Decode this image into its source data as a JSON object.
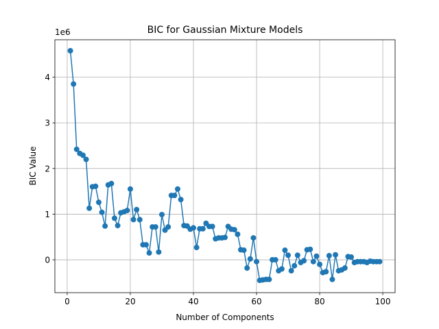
{
  "chart_data": {
    "type": "line",
    "title": "BIC for Gaussian Mixture Models",
    "xlabel": "Number of Components",
    "ylabel": "BIC Value",
    "offset_label": "1e6",
    "xlim": [
      -3.9,
      103.9
    ],
    "ylim": [
      -0.72,
      4.82
    ],
    "xticks": [
      0,
      20,
      40,
      60,
      80,
      100
    ],
    "yticks": [
      0,
      1,
      2,
      3,
      4
    ],
    "grid": true,
    "color": "#1f77b4",
    "series": [
      {
        "x": [
          1,
          2,
          3,
          4,
          5,
          6,
          7,
          8,
          9,
          10,
          11,
          12,
          13,
          14,
          15,
          16,
          17,
          18,
          19,
          20,
          21,
          22,
          23,
          24,
          25,
          26,
          27,
          28,
          29,
          30,
          31,
          32,
          33,
          34,
          35,
          36,
          37,
          38,
          39,
          40,
          41,
          42,
          43,
          44,
          45,
          46,
          47,
          48,
          49,
          50,
          51,
          52,
          53,
          54,
          55,
          56,
          57,
          58,
          59,
          60,
          61,
          62,
          63,
          64,
          65,
          66,
          67,
          68,
          69,
          70,
          71,
          72,
          73,
          74,
          75,
          76,
          77,
          78,
          79,
          80,
          81,
          82,
          83,
          84,
          85,
          86,
          87,
          88,
          89,
          90,
          91,
          92,
          93,
          94,
          95,
          96,
          97,
          98,
          99
        ],
        "y": [
          4.58,
          3.85,
          2.42,
          2.33,
          2.29,
          2.2,
          1.13,
          1.6,
          1.61,
          1.26,
          1.04,
          0.74,
          1.64,
          1.67,
          0.91,
          0.75,
          1.03,
          1.05,
          1.08,
          1.55,
          0.88,
          1.1,
          0.88,
          0.33,
          0.33,
          0.15,
          0.72,
          0.72,
          0.17,
          0.99,
          0.65,
          0.72,
          1.41,
          1.41,
          1.55,
          1.32,
          0.75,
          0.74,
          0.67,
          0.7,
          0.27,
          0.68,
          0.68,
          0.8,
          0.73,
          0.73,
          0.46,
          0.48,
          0.48,
          0.49,
          0.73,
          0.67,
          0.66,
          0.56,
          0.22,
          0.21,
          -0.18,
          0.02,
          0.48,
          -0.04,
          -0.45,
          -0.44,
          -0.43,
          -0.43,
          0.0,
          0.0,
          -0.24,
          -0.2,
          0.21,
          0.1,
          -0.24,
          -0.13,
          0.1,
          -0.06,
          -0.02,
          0.22,
          0.23,
          -0.04,
          0.08,
          -0.1,
          -0.28,
          -0.26,
          0.09,
          -0.43,
          0.11,
          -0.24,
          -0.22,
          -0.18,
          0.07,
          0.06,
          -0.06,
          -0.04,
          -0.04,
          -0.04,
          -0.06,
          -0.03,
          -0.04,
          -0.04,
          -0.04
        ]
      }
    ]
  }
}
